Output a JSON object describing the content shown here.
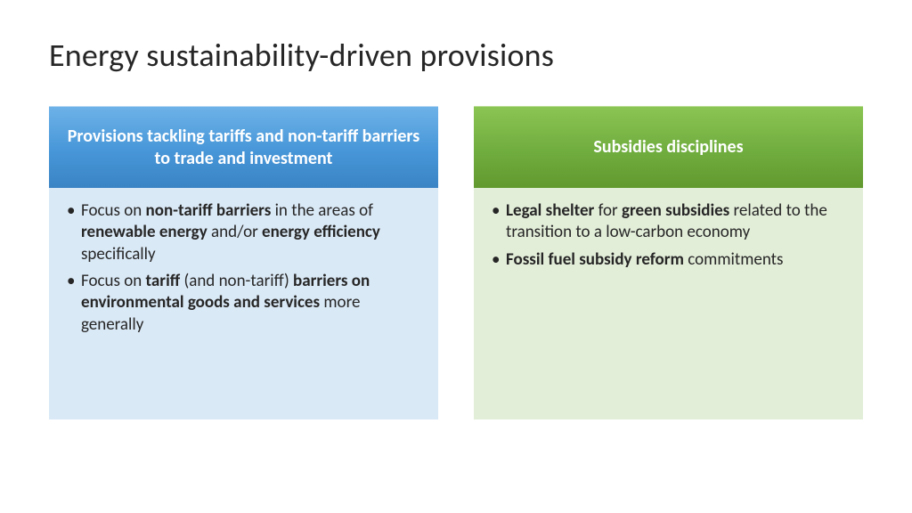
{
  "title": "Energy sustainability-driven provisions",
  "left": {
    "header": "Provisions tackling tariffs and non-tariff barriers to trade and investment",
    "items": [
      {
        "pre": "Focus on ",
        "b1": "non-tariff barriers",
        "m1": " in the areas of ",
        "b2": "renewable energy",
        "m2": " and/or ",
        "b3": "energy efficiency",
        "post": " specifically"
      },
      {
        "pre": "Focus on ",
        "b1": "tariff",
        "m1": " (and non-tariff) ",
        "b2": "barriers on environmental goods and services",
        "post": " more generally"
      }
    ]
  },
  "right": {
    "header": "Subsidies disciplines",
    "items": [
      {
        "b1": "Legal shelter",
        "m1": " for ",
        "b2": "green subsidies",
        "post": " related to the transition to a low-carbon economy"
      },
      {
        "b1": "Fossil fuel subsidy reform",
        "post": " commitments"
      }
    ]
  },
  "colors": {
    "blue_header_top": "#6db2e8",
    "blue_header_bottom": "#3a84c4",
    "blue_body": "#dae9f6",
    "green_header_top": "#8bc553",
    "green_header_bottom": "#62992e",
    "green_body": "#e3eed9",
    "text": "#262626",
    "background": "#ffffff"
  },
  "typography": {
    "title_fontsize": 36,
    "header_fontsize": 20,
    "body_fontsize": 19,
    "font_family": "Calibri"
  }
}
